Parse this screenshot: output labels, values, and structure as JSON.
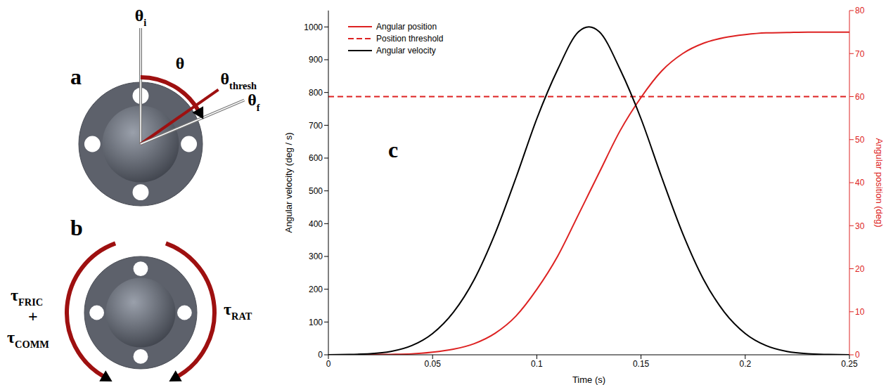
{
  "diagram": {
    "panel_a": {
      "letter": "a",
      "labels": {
        "initial": "θi",
        "angle": "θ",
        "threshold": "θthresh",
        "final": "θf"
      }
    },
    "panel_b": {
      "letter": "b",
      "labels": {
        "left": [
          "τFRIC",
          "+",
          "τCOMM"
        ],
        "right": "τRAT"
      }
    }
  },
  "chart_data": {
    "type": "line",
    "panel_label": "c",
    "x_label": "Time (s)",
    "y_label": "Angular velocity (deg / s)",
    "y2_label": "Angular position (deg)",
    "xlim": [
      0,
      0.25
    ],
    "xticks": [
      0,
      0.05,
      0.1,
      0.15,
      0.2,
      0.25
    ],
    "ylim": [
      0,
      1050
    ],
    "yticks": [
      0,
      100,
      200,
      300,
      400,
      500,
      600,
      700,
      800,
      900,
      1000
    ],
    "y2lim": [
      0,
      80
    ],
    "y2ticks": [
      0,
      10,
      20,
      30,
      40,
      50,
      60,
      70,
      80
    ],
    "grid": false,
    "legend": "upper left",
    "series": [
      {
        "name": "Angular position",
        "color": "#dd2222",
        "axis": "y2",
        "line_style": "solid",
        "x": [
          0,
          0.01,
          0.02,
          0.03,
          0.04,
          0.05,
          0.06,
          0.07,
          0.08,
          0.09,
          0.1,
          0.11,
          0.12,
          0.125,
          0.13,
          0.14,
          0.15,
          0.16,
          0.17,
          0.18,
          0.19,
          0.2,
          0.21,
          0.22,
          0.23,
          0.24,
          0.25
        ],
        "values": [
          0,
          0,
          0.05,
          0.1,
          0.2,
          0.6,
          1.3,
          2.6,
          5.0,
          9.0,
          15.2,
          22.9,
          32.6,
          37.5,
          42.4,
          52.1,
          59.8,
          66,
          70,
          72.4,
          73.7,
          74.4,
          74.8,
          74.9,
          75,
          75,
          75
        ]
      },
      {
        "name": "Position threshold",
        "color": "#dd2222",
        "axis": "y2",
        "line_style": "dashed",
        "x": [
          0,
          0.25
        ],
        "values": [
          60,
          60
        ]
      },
      {
        "name": "Angular velocity",
        "color": "#000000",
        "axis": "y",
        "line_style": "solid",
        "x": [
          0,
          0.01,
          0.02,
          0.03,
          0.04,
          0.05,
          0.06,
          0.07,
          0.08,
          0.09,
          0.1,
          0.11,
          0.12,
          0.125,
          0.13,
          0.14,
          0.15,
          0.16,
          0.17,
          0.18,
          0.19,
          0.2,
          0.21,
          0.22,
          0.23,
          0.24,
          0.25
        ],
        "values": [
          0,
          1,
          3,
          10,
          28,
          65,
          130,
          230,
          370,
          540,
          720,
          870,
          985,
          1000,
          985,
          870,
          720,
          540,
          370,
          230,
          130,
          65,
          28,
          10,
          3,
          1,
          0
        ]
      }
    ]
  }
}
